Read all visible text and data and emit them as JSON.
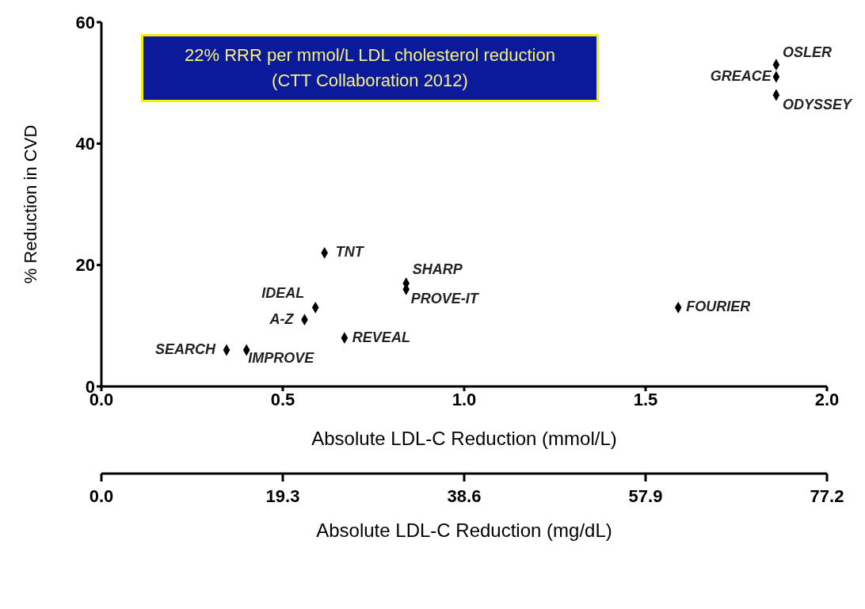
{
  "chart_data": {
    "type": "scatter",
    "xlabel": "Absolute LDL-C Reduction (mmol/L)",
    "ylabel": "% Reduction in CVD",
    "x2label": "Absolute LDL-C Reduction (mg/dL)",
    "x": [
      0.345,
      0.4,
      0.56,
      0.59,
      0.67,
      0.615,
      0.84,
      0.84,
      1.59,
      1.86,
      1.86,
      1.86
    ],
    "values": [
      6,
      6,
      11,
      13,
      8,
      22,
      17,
      16,
      13,
      53,
      51,
      48
    ],
    "color": "#000000",
    "marker": "diamond",
    "grid": false,
    "legend": false,
    "xlim": [
      0,
      2
    ],
    "xticks": [
      {
        "value": 0,
        "label": "0.0"
      },
      0.5,
      {
        "value": 1,
        "label": "1.0"
      },
      1.5,
      {
        "value": 2,
        "label": "2.0"
      }
    ],
    "ylim": [
      0,
      60
    ],
    "yticks": [
      0,
      20,
      40,
      60
    ],
    "x2lim": [
      0,
      77.2
    ],
    "x2ticks": [
      {
        "value": 0,
        "label": "0.0"
      },
      19.3,
      38.6,
      57.9,
      77.2
    ],
    "annotations": [
      "22% RRR per mmol/L LDL cholesterol reduction\n(CTT Collaboration 2012)",
      {
        "text": "SEARCH",
        "x": 0.345,
        "y": 6
      },
      {
        "text": "IMPROVE",
        "x": 0.4,
        "y": 6
      },
      {
        "text": "A-Z",
        "x": 0.56,
        "y": 11
      },
      {
        "text": "IDEAL",
        "x": 0.59,
        "y": 13
      },
      {
        "text": "REVEAL",
        "x": 0.67,
        "y": 8
      },
      {
        "text": "TNT",
        "x": 0.615,
        "y": 22
      },
      {
        "text": "SHARP",
        "x": 0.84,
        "y": 17
      },
      {
        "text": "PROVE-IT",
        "x": 0.84,
        "y": 16
      },
      {
        "text": "FOURIER",
        "x": 1.59,
        "y": 13
      },
      {
        "text": "OSLER",
        "x": 1.86,
        "y": 53
      },
      {
        "text": "GREACE",
        "x": 1.86,
        "y": 51
      },
      {
        "text": "ODYSSEY",
        "x": 1.86,
        "y": 48
      }
    ]
  }
}
